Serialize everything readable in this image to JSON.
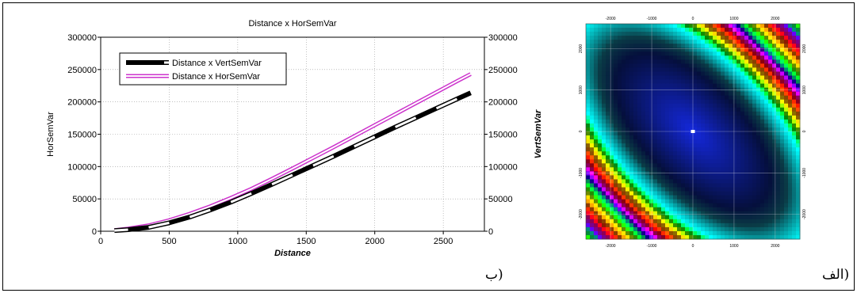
{
  "captions": {
    "left_panel": "ب)",
    "right_panel": "الف)"
  },
  "chart_data": [
    {
      "type": "line",
      "title": "Distance x HorSemVar",
      "xlabel": "Distance",
      "ylabel": "HorSemVar",
      "y2label": "VertSemVar",
      "xlim": [
        0,
        2800
      ],
      "ylim": [
        0,
        300000
      ],
      "y2lim": [
        0,
        300000
      ],
      "xticks": [
        0,
        500,
        1000,
        1500,
        2000,
        2500
      ],
      "yticks": [
        0,
        50000,
        100000,
        150000,
        200000,
        250000,
        300000
      ],
      "grid": true,
      "legend_position": "top-left",
      "series": [
        {
          "name": "Distance x VertSemVar",
          "color": "#000000",
          "axis": "right",
          "x": [
            100,
            200,
            350,
            500,
            650,
            800,
            950,
            1100,
            1250,
            1400,
            1550,
            1700,
            1850,
            2000,
            2150,
            2300,
            2450,
            2600,
            2700
          ],
          "y": [
            1000,
            2500,
            6000,
            13000,
            22000,
            33000,
            45000,
            58500,
            72500,
            87000,
            101500,
            116000,
            131000,
            146000,
            161000,
            175500,
            190000,
            204500,
            214000
          ]
        },
        {
          "name": "Distance x HorSemVar",
          "color": "#cc33cc",
          "axis": "left",
          "x": [
            100,
            200,
            350,
            500,
            650,
            800,
            950,
            1100,
            1250,
            1400,
            1550,
            1700,
            1850,
            2000,
            2150,
            2300,
            2450,
            2600,
            2700
          ],
          "y": [
            1500,
            4000,
            9000,
            17000,
            27000,
            38500,
            51500,
            65500,
            81000,
            97000,
            113500,
            130000,
            147000,
            164000,
            181000,
            198000,
            215000,
            232000,
            243000
          ]
        }
      ]
    },
    {
      "type": "heatmap",
      "xticks": [
        -2000,
        -1000,
        0,
        1000,
        2000
      ],
      "yticks": [
        2000,
        1000,
        0,
        -1000,
        -2000
      ],
      "xlim": [
        -2600,
        2600
      ],
      "ylim": [
        -2600,
        2600
      ],
      "grid": true,
      "colors": [
        "#0000ff",
        "#000000",
        "#00ffff",
        "#00ff00",
        "#ffff00",
        "#ff8000",
        "#ff0000",
        "#ff00ff"
      ]
    }
  ]
}
